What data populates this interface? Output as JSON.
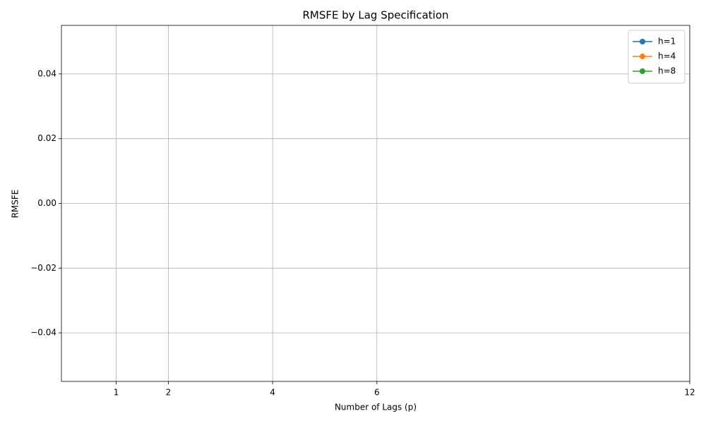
{
  "chart_data": {
    "type": "line",
    "title": "RMSFE by Lag Specification",
    "x_label": "Number of Lags (p)",
    "y_label": "RMSFE",
    "x": [
      1,
      2,
      4,
      6,
      12
    ],
    "series": [
      {
        "name": "h=1",
        "color": "#1f77b4",
        "values": [
          null,
          null,
          null,
          null,
          null
        ]
      },
      {
        "name": "h=4",
        "color": "#ff7f0e",
        "values": [
          null,
          null,
          null,
          null,
          null
        ]
      },
      {
        "name": "h=8",
        "color": "#2ca02c",
        "values": [
          null,
          null,
          null,
          null,
          null
        ]
      }
    ],
    "xlim": [
      -0.05,
      12
    ],
    "xticks": [
      1,
      2,
      4,
      6,
      12
    ],
    "ylim": [
      -0.055,
      0.055
    ],
    "yticks": [
      {
        "value": -0.04,
        "label": "−0.04"
      },
      {
        "value": -0.02,
        "label": "−0.02"
      },
      {
        "value": 0,
        "label": "0.00"
      },
      0.02,
      0.04
    ],
    "grid": true,
    "legend": "upper right"
  }
}
